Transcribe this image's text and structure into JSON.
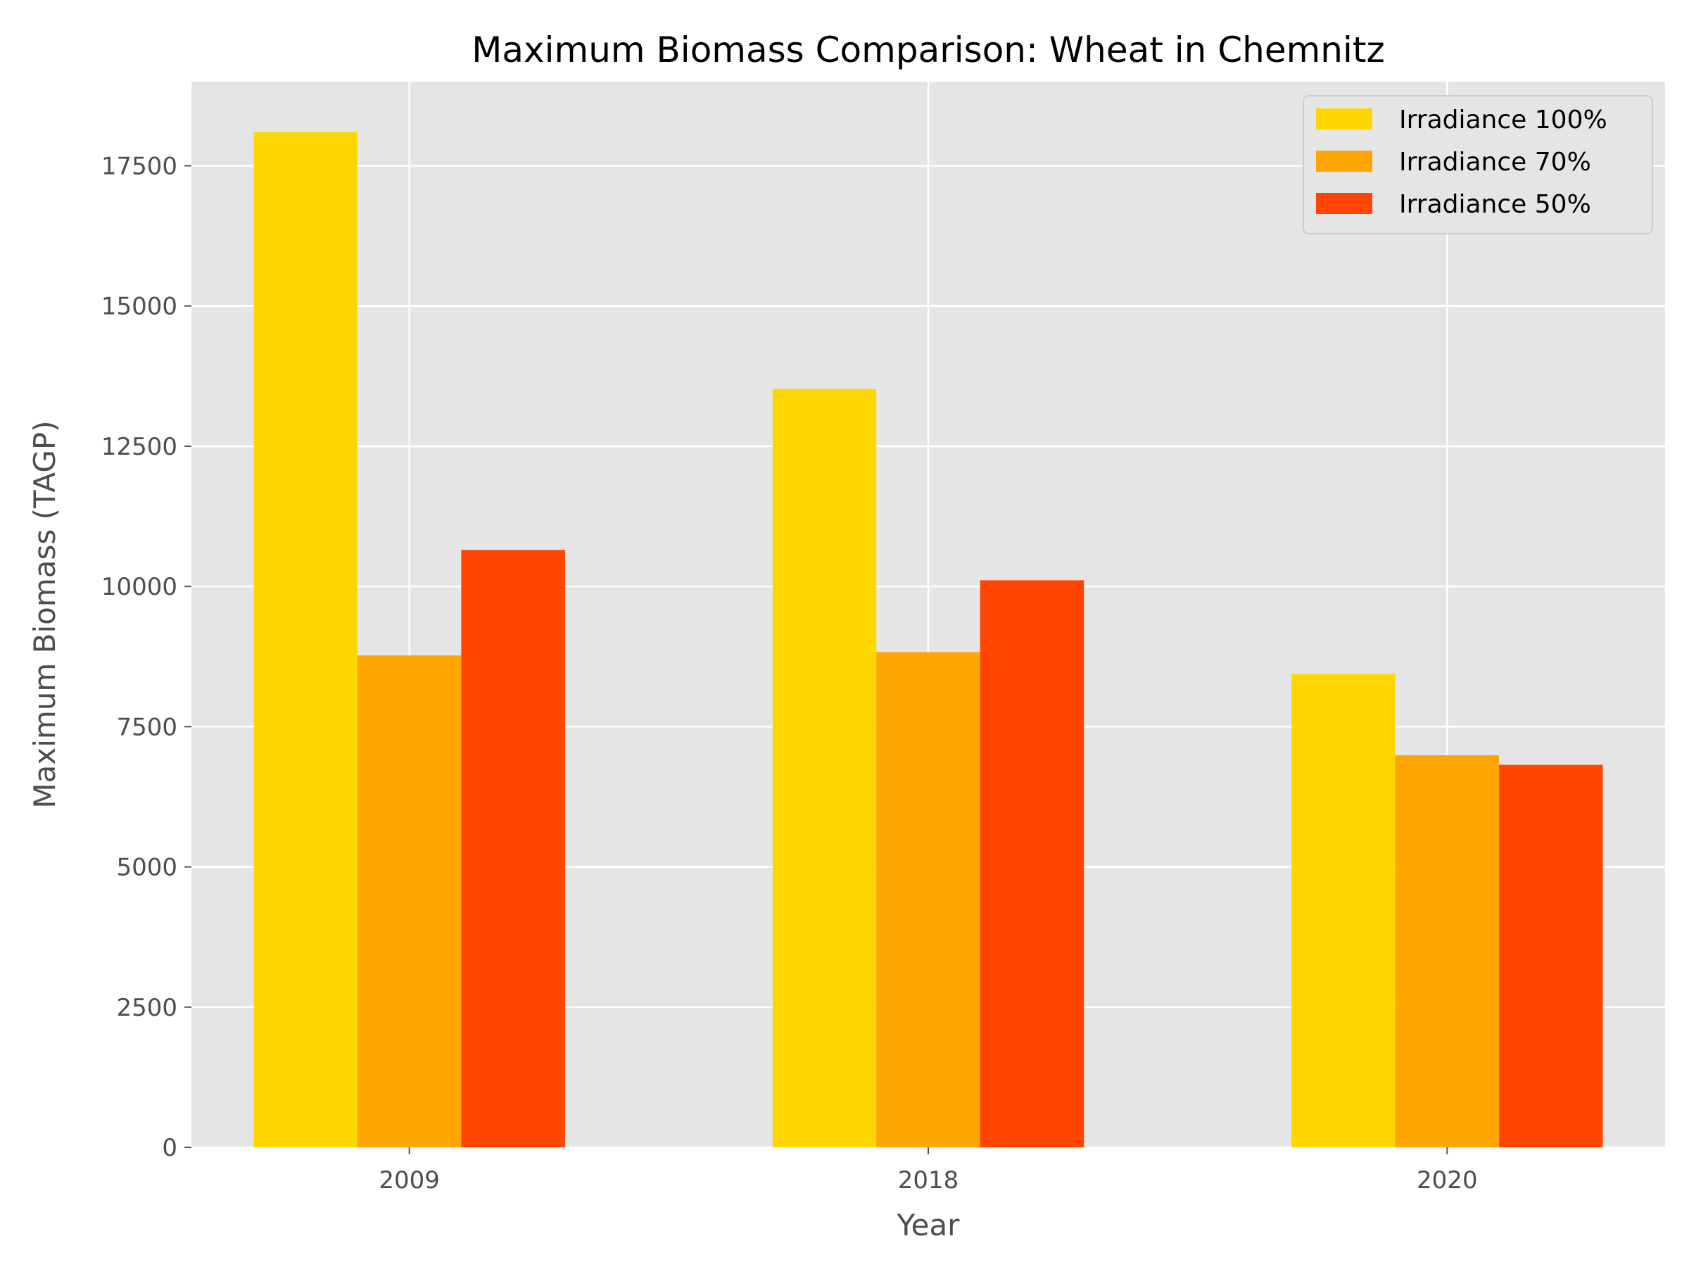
{
  "chart_data": {
    "type": "bar",
    "title": "Maximum Biomass Comparison: Wheat in Chemnitz",
    "xlabel": "Year",
    "ylabel": "Maximum Biomass (TAGP)",
    "categories": [
      "2009",
      "2018",
      "2020"
    ],
    "series": [
      {
        "name": "Irradiance 100%",
        "color": "#FFD700",
        "values": [
          18100,
          13520,
          8440
        ]
      },
      {
        "name": "Irradiance 70%",
        "color": "#FFA500",
        "values": [
          8770,
          8830,
          6990
        ]
      },
      {
        "name": "Irradiance 50%",
        "color": "#FF4500",
        "values": [
          10650,
          10110,
          6820
        ]
      }
    ],
    "ylim": [
      0,
      19000
    ],
    "yticks": [
      0,
      2500,
      5000,
      7500,
      10000,
      12500,
      15000,
      17500
    ],
    "grid": true,
    "legend_position": "top-right",
    "background_color": "#E5E5E5"
  }
}
